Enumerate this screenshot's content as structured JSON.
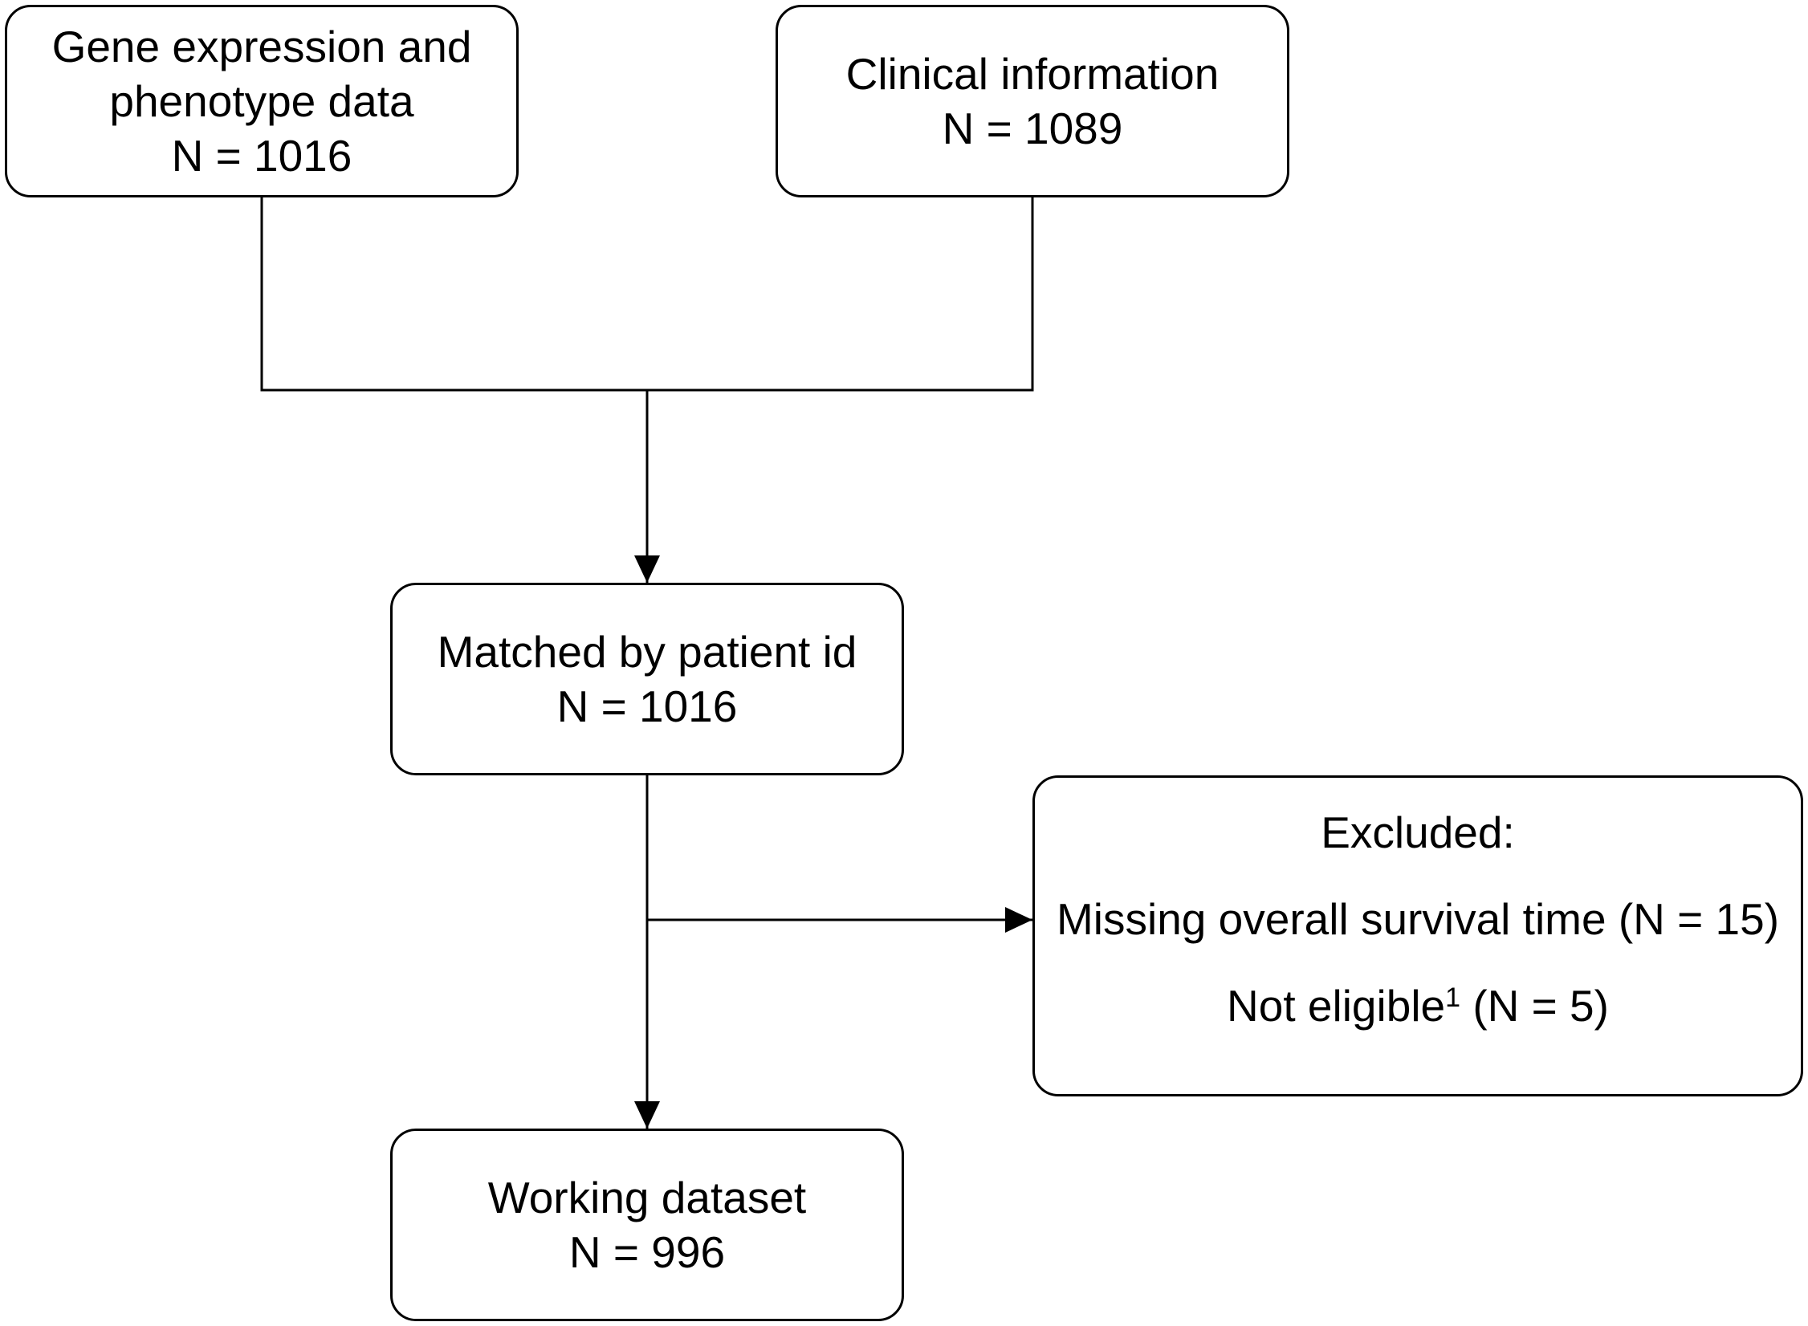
{
  "boxes": {
    "gene": {
      "line1": "Gene expression and",
      "line2": "phenotype data",
      "count": "N = 1016"
    },
    "clinical": {
      "line1": "Clinical information",
      "count": "N = 1089"
    },
    "matched": {
      "line1": "Matched by patient id",
      "count": "N = 1016"
    },
    "excluded": {
      "heading": "Excluded:",
      "reason1": "Missing overall survival time (N = 15)",
      "reason2_text": "Not eligible",
      "reason2_superscript": "1",
      "reason2_count": " (N = 5)"
    },
    "working": {
      "line1": "Working dataset",
      "count": "N = 996"
    }
  },
  "colors": {
    "stroke": "#000000",
    "background": "#ffffff"
  }
}
